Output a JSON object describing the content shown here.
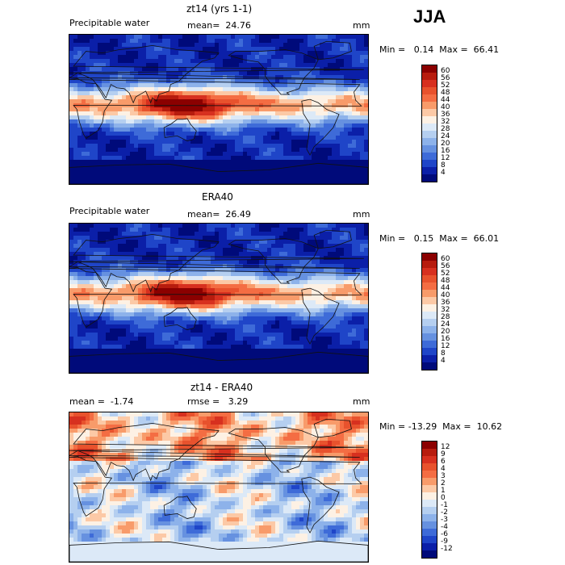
{
  "season": "JJA",
  "panels": [
    {
      "title": "zt14 (yrs 1-1)",
      "left": "Precipitable water",
      "mid": "mean=  24.76",
      "unit": "mm",
      "range": "Min =   0.14  Max =  66.41",
      "levels": [
        "60",
        "56",
        "52",
        "48",
        "44",
        "40",
        "36",
        "32",
        "28",
        "24",
        "20",
        "16",
        "12",
        "8",
        "4"
      ],
      "colors": [
        "#8b0000",
        "#b71c0e",
        "#d7301f",
        "#e8522d",
        "#f46d43",
        "#f89b6a",
        "#fcc9a6",
        "#fdf1e4",
        "#dce9f7",
        "#b5cff0",
        "#8db2ea",
        "#6691e0",
        "#3e6bd8",
        "#1f45c8",
        "#0b1fa8",
        "#000a7a"
      ]
    },
    {
      "title": "ERA40",
      "left": "Precipitable water",
      "mid": "mean=  26.49",
      "unit": "mm",
      "range": "Min =   0.15  Max =  66.01",
      "levels": [
        "60",
        "56",
        "52",
        "48",
        "44",
        "40",
        "36",
        "32",
        "28",
        "24",
        "20",
        "16",
        "12",
        "8",
        "4"
      ],
      "colors": [
        "#8b0000",
        "#b71c0e",
        "#d7301f",
        "#e8522d",
        "#f46d43",
        "#f89b6a",
        "#fcc9a6",
        "#fdf1e4",
        "#dce9f7",
        "#b5cff0",
        "#8db2ea",
        "#6691e0",
        "#3e6bd8",
        "#1f45c8",
        "#0b1fa8",
        "#000a7a"
      ]
    },
    {
      "title": "zt14 - ERA40",
      "left": "mean =  -1.74",
      "mid": "rmse =   3.29",
      "unit": "mm",
      "range": "Min = -13.29  Max =  10.62",
      "levels": [
        "12",
        "9",
        "6",
        "4",
        "3",
        "2",
        "1",
        "0",
        "-1",
        "-2",
        "-3",
        "-4",
        "-6",
        "-9",
        "-12"
      ],
      "colors": [
        "#8b0000",
        "#b71c0e",
        "#d7301f",
        "#e8522d",
        "#f46d43",
        "#f89b6a",
        "#fcc9a6",
        "#fdf1e4",
        "#dce9f7",
        "#b5cff0",
        "#8db2ea",
        "#6691e0",
        "#3e6bd8",
        "#1f45c8",
        "#0b1fa8",
        "#000a7a"
      ]
    }
  ]
}
